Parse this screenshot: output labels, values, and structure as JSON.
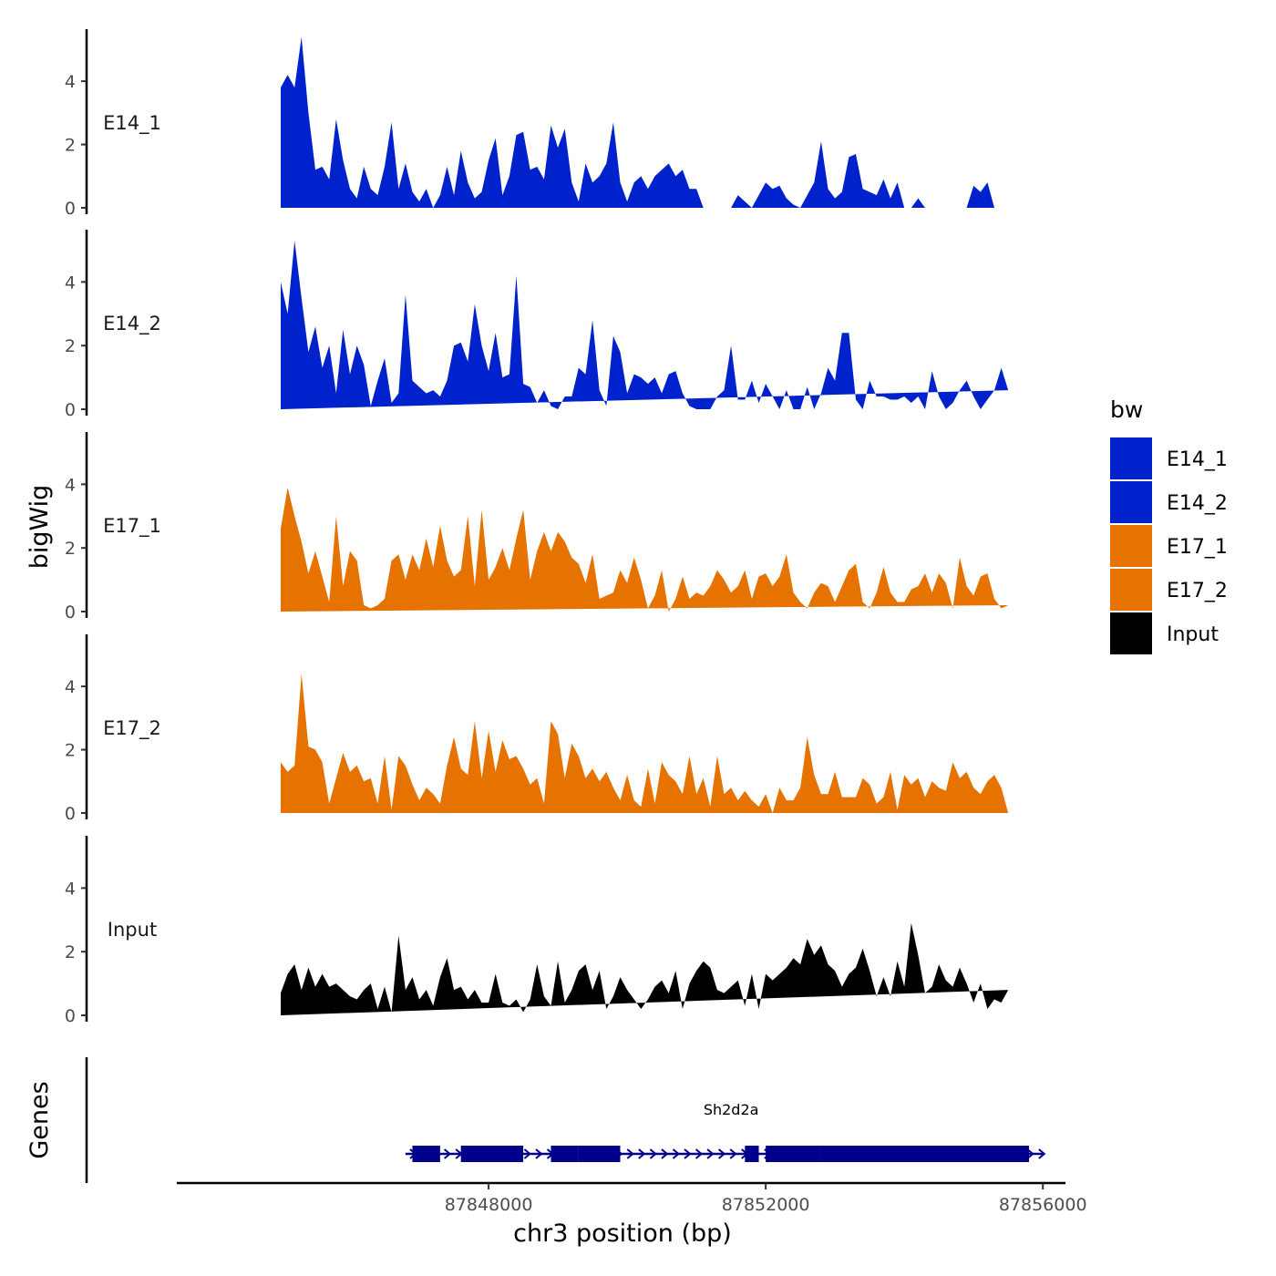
{
  "chart_data": {
    "type": "area",
    "ylabel": "bigWig",
    "xlabel": "chr3 position (bp)",
    "xlim": [
      87843500,
      87856300
    ],
    "ylim": [
      0,
      5.5
    ],
    "x_ticks": [
      87848000,
      87852000,
      87856000
    ],
    "x_tick_labels": [
      "87848000",
      "87852000",
      "87856000"
    ],
    "y_ticks": [
      0,
      2,
      4
    ],
    "y_tick_labels": [
      "0",
      "2",
      "4"
    ],
    "legend": {
      "title": "bw",
      "position": "right",
      "entries": [
        {
          "label": "E14_1",
          "color": "#0022CC"
        },
        {
          "label": "E14_2",
          "color": "#0022CC"
        },
        {
          "label": "E17_1",
          "color": "#E67300"
        },
        {
          "label": "E17_2",
          "color": "#E67300"
        },
        {
          "label": "Input",
          "color": "#000000"
        }
      ]
    },
    "tracks_x": [
      87845000,
      87845100,
      87845200,
      87845300,
      87845400,
      87845500,
      87845600,
      87845700,
      87845800,
      87845900,
      87846000,
      87846100,
      87846200,
      87846300,
      87846400,
      87846500,
      87846600,
      87846700,
      87846800,
      87846900,
      87847000,
      87847100,
      87847200,
      87847300,
      87847400,
      87847500,
      87847600,
      87847700,
      87847800,
      87847900,
      87848000,
      87848100,
      87848200,
      87848300,
      87848400,
      87848500,
      87848600,
      87848700,
      87848800,
      87848900,
      87849000,
      87849100,
      87849200,
      87849300,
      87849400,
      87849500,
      87849600,
      87849700,
      87849800,
      87849900,
      87850000,
      87850100,
      87850200,
      87850300,
      87850400,
      87850500,
      87850600,
      87850700,
      87850800,
      87850900,
      87851000,
      87851100,
      87851200,
      87851300,
      87851400,
      87851500,
      87851600,
      87851700,
      87851800,
      87851900,
      87852000,
      87852100,
      87852200,
      87852300,
      87852400,
      87852500,
      87852600,
      87852700,
      87852800,
      87852900,
      87853000,
      87853100,
      87853200,
      87853300,
      87853400,
      87853500,
      87853600,
      87853700,
      87853800,
      87853900,
      87854000,
      87854100,
      87854200,
      87854300,
      87854400,
      87854500,
      87854600,
      87854700,
      87854800,
      87854900,
      87855000,
      87855100,
      87855200,
      87855300,
      87855400,
      87855500,
      87855600,
      87855700
    ],
    "tracks": [
      {
        "name": "E14_1",
        "color": "#0022CC",
        "values": [
          3.8,
          4.2,
          3.8,
          5.4,
          3.0,
          1.2,
          1.3,
          0.9,
          2.8,
          1.5,
          0.6,
          0.3,
          1.3,
          0.6,
          0.4,
          1.3,
          2.7,
          0.6,
          1.4,
          0.5,
          0.2,
          0.6,
          0.0,
          0.4,
          1.3,
          0.4,
          1.8,
          0.8,
          0.3,
          0.5,
          1.5,
          2.2,
          0.4,
          1.0,
          2.3,
          2.4,
          1.2,
          1.3,
          0.9,
          2.6,
          1.9,
          2.5,
          0.8,
          0.2,
          1.4,
          0.8,
          1.0,
          1.4,
          2.7,
          0.8,
          0.2,
          0.8,
          1.0,
          0.6,
          1.0,
          1.2,
          1.4,
          1.0,
          1.2,
          0.6,
          0.6,
          0.0,
          0.0,
          0.0,
          0.0,
          0.0,
          0.4,
          0.2,
          0.0,
          0.4,
          0.8,
          0.6,
          0.7,
          0.3,
          0.1,
          0.0,
          0.4,
          0.8,
          2.1,
          0.6,
          0.3,
          0.5,
          1.6,
          1.7,
          0.6,
          0.5,
          0.4,
          0.9,
          0.3,
          0.8,
          0.0,
          0.0,
          0.3,
          0.0,
          0.0,
          0.0,
          0.0,
          0.0,
          0.0,
          0.0,
          0.7,
          0.5,
          0.8,
          0.0,
          0.0,
          0.0
        ]
      },
      {
        "name": "E14_2",
        "color": "#0022CC",
        "values": [
          4.0,
          3.0,
          5.3,
          3.5,
          1.8,
          2.6,
          1.3,
          2.0,
          0.5,
          2.5,
          1.1,
          2.0,
          1.4,
          0.1,
          0.9,
          1.6,
          0.2,
          0.5,
          3.6,
          0.9,
          0.7,
          0.5,
          0.6,
          0.4,
          0.9,
          2.0,
          2.1,
          1.5,
          3.3,
          2.0,
          1.2,
          2.4,
          1.0,
          1.1,
          4.2,
          0.8,
          0.7,
          0.2,
          0.6,
          0.1,
          0.0,
          0.4,
          0.4,
          1.3,
          1.1,
          2.8,
          0.6,
          0.1,
          2.3,
          1.8,
          0.5,
          1.1,
          1.0,
          0.8,
          1.0,
          0.5,
          1.1,
          1.2,
          0.5,
          0.1,
          0.0,
          0.0,
          0.0,
          0.4,
          0.6,
          2.0,
          0.3,
          0.3,
          0.9,
          0.2,
          0.8,
          0.4,
          0.0,
          0.6,
          0.0,
          0.0,
          0.7,
          0.0,
          0.5,
          1.3,
          0.9,
          2.4,
          2.4,
          0.3,
          0.0,
          0.9,
          0.4,
          0.4,
          0.3,
          0.3,
          0.4,
          0.2,
          0.4,
          0.0,
          1.2,
          0.4,
          0.0,
          0.2,
          0.6,
          0.9,
          0.4,
          0.0,
          0.3,
          0.6,
          1.3,
          0.6
        ]
      },
      {
        "name": "E17_1",
        "color": "#E67300",
        "values": [
          2.6,
          3.9,
          3.0,
          2.2,
          1.2,
          1.9,
          1.1,
          0.3,
          3.0,
          0.8,
          1.9,
          1.6,
          0.2,
          0.1,
          0.2,
          0.4,
          1.6,
          1.8,
          1.0,
          1.8,
          1.3,
          2.3,
          1.4,
          2.7,
          1.6,
          1.1,
          1.3,
          3.0,
          0.8,
          3.2,
          1.0,
          1.4,
          2.0,
          1.3,
          2.3,
          3.2,
          1.0,
          1.9,
          2.5,
          1.9,
          2.5,
          2.2,
          1.7,
          1.5,
          0.9,
          1.8,
          0.4,
          0.5,
          0.6,
          1.3,
          0.9,
          1.7,
          1.0,
          0.1,
          0.5,
          1.3,
          0.0,
          0.4,
          1.1,
          0.4,
          0.6,
          0.5,
          0.8,
          1.3,
          1.0,
          0.6,
          0.8,
          1.3,
          0.4,
          1.1,
          1.2,
          0.8,
          1.1,
          1.8,
          0.6,
          0.3,
          0.1,
          0.6,
          0.9,
          0.8,
          0.3,
          0.8,
          1.3,
          1.5,
          0.3,
          0.1,
          0.6,
          1.4,
          0.6,
          0.3,
          0.3,
          0.7,
          0.8,
          1.2,
          0.6,
          1.2,
          0.9,
          0.1,
          1.7,
          0.8,
          0.5,
          1.1,
          1.2,
          0.4,
          0.1,
          0.2
        ]
      },
      {
        "name": "E17_2",
        "color": "#E67300",
        "values": [
          1.6,
          1.3,
          1.5,
          4.4,
          2.1,
          2.0,
          1.6,
          0.3,
          1.1,
          1.9,
          1.3,
          1.5,
          1.0,
          1.1,
          0.3,
          1.8,
          0.1,
          1.8,
          1.5,
          0.9,
          0.4,
          0.8,
          0.6,
          0.3,
          1.5,
          2.4,
          1.4,
          1.2,
          2.9,
          1.1,
          2.6,
          1.3,
          2.3,
          1.7,
          1.8,
          1.4,
          0.9,
          1.1,
          0.3,
          2.9,
          2.5,
          1.1,
          2.2,
          1.8,
          1.1,
          1.4,
          1.0,
          1.3,
          0.8,
          0.4,
          1.2,
          0.4,
          0.2,
          1.4,
          0.3,
          1.6,
          1.2,
          1.0,
          0.6,
          1.8,
          0.6,
          1.1,
          0.2,
          1.8,
          0.6,
          0.8,
          0.4,
          0.7,
          0.4,
          0.2,
          0.6,
          0.0,
          0.8,
          0.4,
          0.4,
          0.8,
          2.4,
          1.2,
          0.6,
          0.6,
          1.3,
          0.5,
          0.5,
          0.5,
          1.1,
          0.9,
          0.3,
          0.5,
          1.3,
          0.1,
          1.2,
          0.9,
          1.1,
          0.5,
          1.0,
          0.8,
          0.7,
          1.6,
          1.1,
          1.3,
          0.8,
          0.6,
          1.0,
          1.2,
          0.8,
          0.0
        ]
      },
      {
        "name": "Input",
        "color": "#000000",
        "values": [
          0.7,
          1.3,
          1.6,
          0.8,
          1.5,
          0.9,
          1.3,
          0.9,
          1.0,
          0.8,
          0.6,
          0.5,
          0.8,
          1.0,
          0.2,
          0.9,
          0.1,
          2.5,
          0.8,
          1.2,
          0.5,
          0.8,
          0.3,
          1.2,
          1.8,
          0.8,
          0.9,
          0.5,
          0.8,
          0.4,
          0.4,
          1.3,
          0.4,
          0.3,
          0.5,
          0.1,
          0.5,
          1.6,
          0.6,
          0.3,
          1.7,
          0.4,
          0.8,
          1.4,
          1.6,
          0.8,
          1.4,
          0.2,
          0.6,
          1.2,
          0.8,
          0.5,
          0.2,
          0.5,
          0.9,
          1.1,
          0.7,
          1.4,
          0.2,
          1.0,
          1.4,
          1.7,
          1.5,
          0.8,
          0.7,
          0.9,
          1.1,
          0.3,
          1.3,
          0.2,
          1.3,
          1.1,
          1.3,
          1.5,
          1.8,
          1.6,
          2.4,
          1.9,
          2.2,
          1.6,
          1.4,
          0.9,
          1.3,
          1.5,
          2.1,
          1.4,
          0.6,
          1.2,
          0.6,
          1.7,
          0.9,
          2.9,
          1.9,
          0.7,
          0.9,
          1.6,
          1.1,
          0.9,
          1.5,
          1.0,
          0.4,
          1.0,
          0.2,
          0.5,
          0.4,
          0.8
        ]
      }
    ],
    "genes": {
      "label": "Genes",
      "gene_name": "Sh2d2a",
      "color": "#00008B",
      "start": 87846800,
      "end": 87856000,
      "strand": "+",
      "exons": [
        [
          87846900,
          87847300
        ],
        [
          87847600,
          87848500
        ],
        [
          87848900,
          87849300
        ],
        [
          87849300,
          87849900
        ],
        [
          87851700,
          87851900
        ],
        [
          87852000,
          87852800
        ],
        [
          87852800,
          87855800
        ]
      ]
    }
  }
}
